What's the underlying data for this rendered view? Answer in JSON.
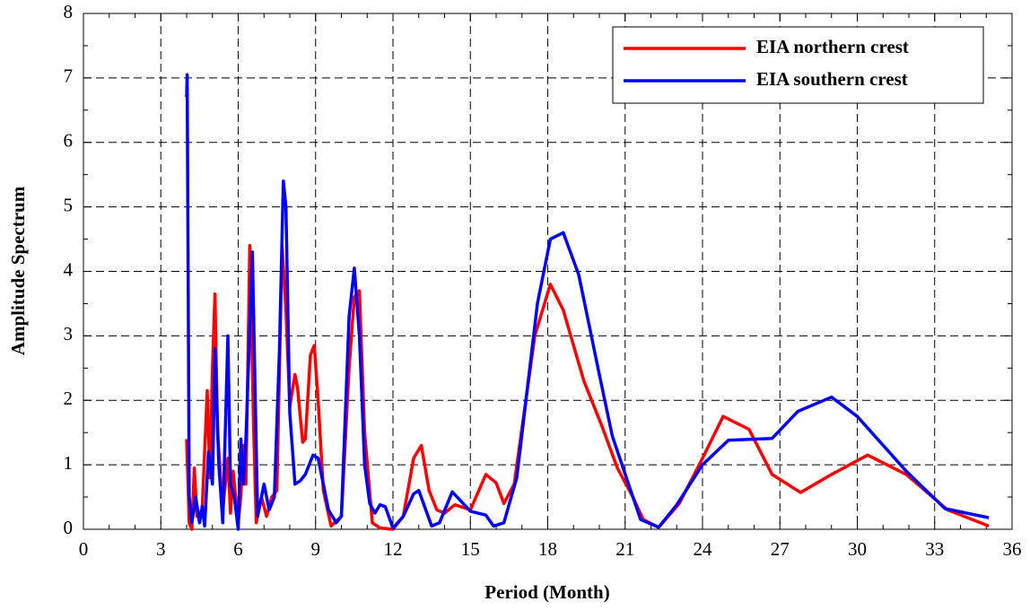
{
  "chart_data": {
    "type": "line",
    "x_label": "Period (Month)",
    "y_label": "Amplitude Spectrum",
    "xlim": [
      0,
      36
    ],
    "xticks": [
      0,
      3,
      6,
      9,
      12,
      15,
      18,
      21,
      24,
      27,
      30,
      33,
      36
    ],
    "ylim": [
      0,
      8
    ],
    "yticks": [
      0,
      1,
      2,
      3,
      4,
      5,
      6,
      7,
      8
    ],
    "grid": true,
    "legend": "upper right",
    "series": [
      {
        "name": "EIA northern crest",
        "color": "#ff0000",
        "x": [
          4.0,
          4.1,
          4.2,
          4.3,
          4.4,
          4.6,
          4.8,
          4.9,
          5.0,
          5.1,
          5.2,
          5.4,
          5.6,
          5.7,
          5.8,
          6.0,
          6.1,
          6.2,
          6.3,
          6.45,
          6.6,
          6.7,
          6.9,
          7.1,
          7.3,
          7.5,
          7.7,
          7.85,
          8.0,
          8.2,
          8.3,
          8.5,
          8.6,
          8.8,
          8.95,
          9.1,
          9.3,
          9.6,
          10.0,
          10.3,
          10.5,
          10.7,
          10.9,
          11.2,
          11.5,
          12.0,
          12.4,
          12.8,
          13.1,
          13.4,
          13.7,
          14.0,
          14.4,
          15.0,
          15.6,
          16.0,
          16.3,
          16.7,
          17.5,
          18.1,
          18.6,
          19.4,
          20.1,
          20.7,
          21.3,
          21.7,
          22.3,
          23.1,
          24.0,
          24.8,
          25.8,
          26.7,
          27.8,
          29.0,
          30.4,
          31.9,
          33.5,
          35.1
        ],
        "values": [
          1.4,
          0.1,
          0.0,
          0.95,
          0.2,
          0.3,
          2.15,
          0.8,
          2.5,
          3.65,
          1.5,
          0.3,
          1.1,
          0.25,
          0.9,
          0.1,
          0.5,
          1.3,
          0.7,
          4.4,
          1.5,
          0.1,
          0.5,
          0.2,
          0.5,
          0.6,
          4.4,
          3.4,
          1.9,
          2.4,
          2.2,
          1.35,
          1.4,
          2.7,
          2.85,
          2.0,
          0.6,
          0.05,
          0.2,
          2.5,
          3.6,
          3.7,
          1.5,
          0.1,
          0.02,
          0.0,
          0.2,
          1.1,
          1.3,
          0.6,
          0.3,
          0.25,
          0.38,
          0.3,
          0.85,
          0.72,
          0.4,
          0.7,
          3.0,
          3.8,
          3.4,
          2.3,
          1.6,
          0.95,
          0.5,
          0.15,
          0.03,
          0.4,
          1.1,
          1.75,
          1.55,
          0.85,
          0.57,
          0.85,
          1.15,
          0.85,
          0.3,
          0.05
        ]
      },
      {
        "name": "EIA southern crest",
        "color": "#0000ff",
        "x": [
          4.0,
          4.02,
          4.1,
          4.2,
          4.35,
          4.5,
          4.6,
          4.7,
          4.85,
          5.0,
          5.1,
          5.25,
          5.4,
          5.6,
          5.7,
          5.85,
          6.0,
          6.1,
          6.2,
          6.3,
          6.55,
          6.75,
          7.0,
          7.2,
          7.4,
          7.6,
          7.75,
          7.85,
          8.0,
          8.2,
          8.4,
          8.6,
          8.9,
          9.1,
          9.5,
          9.8,
          10.0,
          10.3,
          10.5,
          10.7,
          10.9,
          11.1,
          11.3,
          11.5,
          11.7,
          12.0,
          12.4,
          12.8,
          13.0,
          13.5,
          13.8,
          14.3,
          15.0,
          15.6,
          15.9,
          16.3,
          16.8,
          17.6,
          18.1,
          18.6,
          19.2,
          20.0,
          20.5,
          21.3,
          21.6,
          22.3,
          23.0,
          24.0,
          25.0,
          26.7,
          27.7,
          29.0,
          30.0,
          31.9,
          33.4,
          35.1
        ],
        "values": [
          6.7,
          7.05,
          0.5,
          0.1,
          0.5,
          0.1,
          0.35,
          0.05,
          1.2,
          0.7,
          2.8,
          1.0,
          0.1,
          3.0,
          0.7,
          0.5,
          0.0,
          1.4,
          0.7,
          1.4,
          4.3,
          0.2,
          0.7,
          0.3,
          0.5,
          2.8,
          5.4,
          5.0,
          1.8,
          0.7,
          0.75,
          0.85,
          1.15,
          1.1,
          0.3,
          0.1,
          0.2,
          3.3,
          4.05,
          3.0,
          1.0,
          0.4,
          0.25,
          0.38,
          0.35,
          0.02,
          0.2,
          0.55,
          0.6,
          0.05,
          0.1,
          0.58,
          0.28,
          0.22,
          0.05,
          0.1,
          0.8,
          3.5,
          4.5,
          4.6,
          3.95,
          2.4,
          1.45,
          0.5,
          0.15,
          0.03,
          0.38,
          1.0,
          1.38,
          1.41,
          1.83,
          2.05,
          1.75,
          0.9,
          0.32,
          0.18
        ]
      }
    ]
  }
}
